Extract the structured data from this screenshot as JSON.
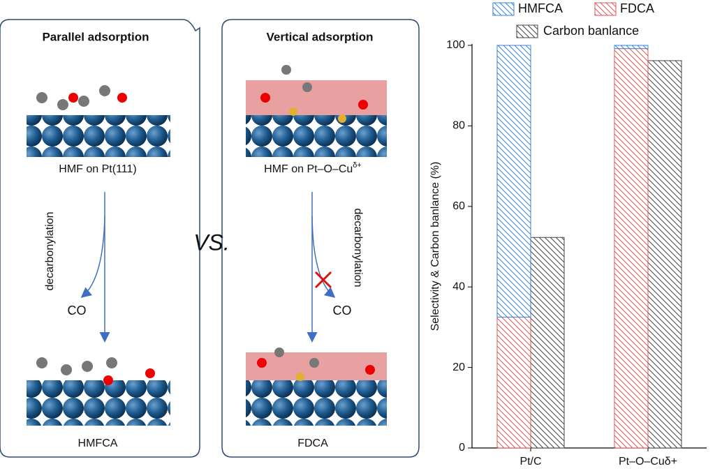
{
  "diagram": {
    "left": {
      "title": "Parallel adsorption",
      "start": "HMF on Pt(111)",
      "arrow": "decarbonylation",
      "side": "CO",
      "end": "HMFCA"
    },
    "middle": "VS.",
    "right": {
      "title": "Vertical adsorption",
      "start": "HMF on Pt–O–Cu",
      "start_sup": "δ+",
      "arrow": "decarbonylation",
      "side": "CO",
      "end": "FDCA"
    }
  },
  "chart_data": {
    "type": "bar",
    "ylabel": "Selectivity & Carbon banlance (%)",
    "categories": [
      "Pt/C",
      "Pt–O–Cuδ+"
    ],
    "series": [
      {
        "name": "HMFCA",
        "color": "#3a80d8",
        "values": [
          67.5,
          0.8
        ],
        "stack": 0
      },
      {
        "name": "FDCA",
        "color": "#e05555",
        "values": [
          32.5,
          99.2
        ],
        "stack": 0
      },
      {
        "name": "Carbon banlance",
        "color": "#444444",
        "values": [
          52.3,
          96.2
        ],
        "stack": 1
      }
    ],
    "ylim": [
      0,
      100
    ],
    "yticks": [
      0,
      20,
      40,
      60,
      80,
      100
    ],
    "grid": false
  }
}
